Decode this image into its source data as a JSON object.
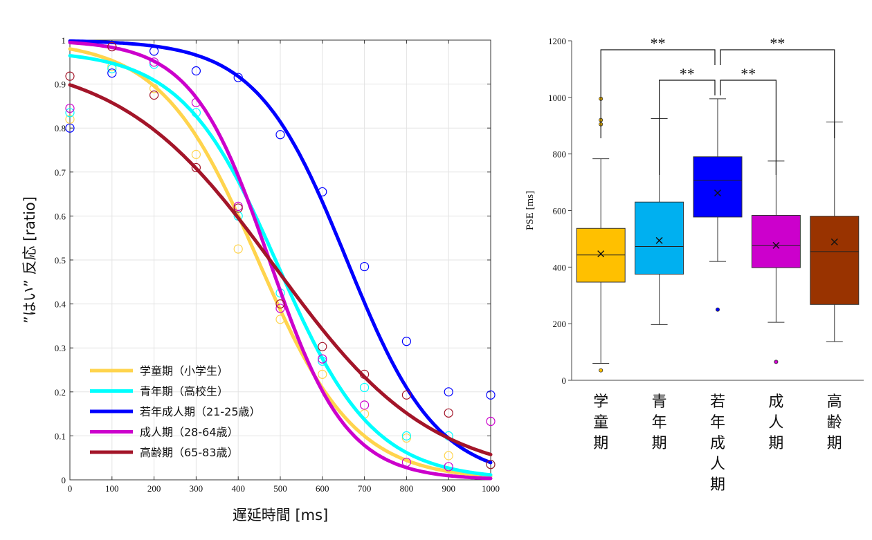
{
  "chart_data": [
    {
      "type": "line",
      "title": "",
      "xlabel": "遅延時間 [ms]",
      "ylabel": "”はい” 反応 [ratio]",
      "xlim": [
        0,
        1000
      ],
      "ylim": [
        0,
        1
      ],
      "xticks": [
        "0",
        "100",
        "200",
        "300",
        "400",
        "500",
        "600",
        "700",
        "800",
        "900",
        "1000"
      ],
      "yticks": [
        "0",
        "0.1",
        "0.2",
        "0.3",
        "0.4",
        "0.5",
        "0.6",
        "0.7",
        "0.8",
        "0.9",
        "1"
      ],
      "grid": true,
      "legend_position": "bottom-left",
      "x": [
        0,
        100,
        200,
        300,
        400,
        500,
        600,
        700,
        800,
        900,
        1000
      ],
      "series": [
        {
          "name": "学童期（小学生）",
          "color": "#ffd44d",
          "points": [
            0.82,
            0.94,
            0.89,
            0.74,
            0.525,
            0.365,
            0.24,
            0.15,
            0.095,
            0.055,
            0.035
          ],
          "fit": {
            "x50": 447,
            "slope": 0.0087,
            "upper": 1.0
          }
        },
        {
          "name": "青年期（高校生）",
          "color": "#00ffff",
          "points": [
            0.835,
            0.935,
            0.945,
            0.835,
            0.6,
            0.425,
            0.27,
            0.21,
            0.1,
            0.1,
            0.035
          ],
          "fit": {
            "x50": 494,
            "slope": 0.0088,
            "upper": 0.977
          }
        },
        {
          "name": "若年成人期（21-25歳）",
          "color": "#0000ff",
          "points": [
            0.8,
            0.925,
            0.975,
            0.93,
            0.915,
            0.785,
            0.655,
            0.485,
            0.315,
            0.2,
            0.193
          ],
          "fit": {
            "x50": 658,
            "slope": 0.00934,
            "upper": 1.0
          }
        },
        {
          "name": "成人期（28-64歳）",
          "color": "#cc00cc",
          "points": [
            0.845,
            0.985,
            0.95,
            0.858,
            0.622,
            0.39,
            0.275,
            0.17,
            0.04,
            0.03,
            0.133
          ],
          "fit": {
            "x50": 474,
            "slope": 0.0109,
            "upper": 1.0
          }
        },
        {
          "name": "高齢期（65-83歳）",
          "color": "#a31529",
          "points": [
            0.918,
            0.985,
            0.875,
            0.71,
            0.618,
            0.4,
            0.303,
            0.24,
            0.193,
            0.152,
            0.035
          ],
          "fit": {
            "x50": 490,
            "slope": 0.0054,
            "upper": 0.962
          }
        }
      ]
    },
    {
      "type": "box",
      "title": "",
      "xlabel": "",
      "ylabel": "PSE [ms]",
      "ylim": [
        0,
        1200
      ],
      "yticks": [
        "0",
        "200",
        "400",
        "600",
        "800",
        "1000",
        "1200"
      ],
      "grid": false,
      "categories": [
        "学童期",
        "青年期",
        "若年成人期",
        "成人期",
        "高齢期"
      ],
      "boxes": [
        {
          "color": "#ffc000",
          "whisker_low": 60,
          "q1": 347,
          "median": 443,
          "q3": 537,
          "whisker_high": 783,
          "mean": 447,
          "outliers": [
            35,
            905,
            920,
            995
          ]
        },
        {
          "color": "#00b0f0",
          "whisker_low": 197,
          "q1": 375,
          "median": 473,
          "q3": 630,
          "whisker_high": 925,
          "mean": 494,
          "outliers": []
        },
        {
          "color": "#0000ff",
          "whisker_low": 420,
          "q1": 577,
          "median": 707,
          "q3": 790,
          "whisker_high": 995,
          "mean": 662,
          "outliers": [
            250
          ]
        },
        {
          "color": "#cc00cc",
          "whisker_low": 205,
          "q1": 398,
          "median": 476,
          "q3": 583,
          "whisker_high": 775,
          "mean": 477,
          "outliers": [
            65
          ]
        },
        {
          "color": "#993300",
          "whisker_low": 137,
          "q1": 268,
          "median": 455,
          "q3": 580,
          "whisker_high": 913,
          "mean": 489,
          "outliers": []
        }
      ],
      "significance": [
        {
          "from": 0,
          "to": 2,
          "label": "**"
        },
        {
          "from": 2,
          "to": 4,
          "label": "**"
        },
        {
          "from": 1,
          "to": 2,
          "label": "**"
        },
        {
          "from": 2,
          "to": 3,
          "label": "**"
        }
      ]
    }
  ]
}
